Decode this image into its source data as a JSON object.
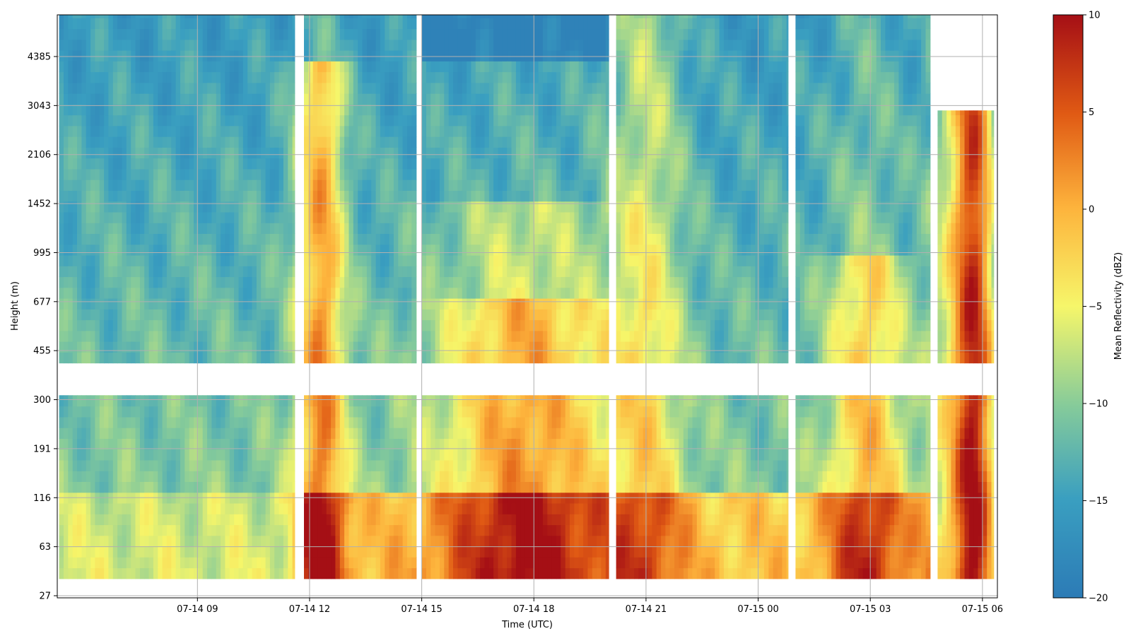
{
  "chart_data": {
    "type": "heatmap",
    "xlabel": "Time (UTC)",
    "ylabel": "Height (m)",
    "colorbar_label": "Mean Reflectivity (dBZ)",
    "x_range_hours": [
      5.25,
      30.4
    ],
    "x_ticks": [
      {
        "label": "07-14 09",
        "hour": 9
      },
      {
        "label": "07-14 12",
        "hour": 12
      },
      {
        "label": "07-14 15",
        "hour": 15
      },
      {
        "label": "07-14 18",
        "hour": 18
      },
      {
        "label": "07-14 21",
        "hour": 21
      },
      {
        "label": "07-15 00",
        "hour": 24
      },
      {
        "label": "07-15 03",
        "hour": 27
      },
      {
        "label": "07-15 06",
        "hour": 30
      }
    ],
    "y_ticks": [
      "27",
      "63",
      "116",
      "191",
      "300",
      "455",
      "677",
      "995",
      "1452",
      "2106",
      "3043",
      "4385"
    ],
    "colorbar": {
      "min": -20,
      "max": 10,
      "ticks": [
        "10",
        "5",
        "0",
        "−5",
        "−10",
        "−15",
        "−20"
      ]
    },
    "grid": true,
    "colormap": "RdYlBu_r",
    "time_segments": [
      {
        "start": 5.3,
        "end": 11.6,
        "top_level": 12.4
      },
      {
        "start": 11.85,
        "end": 14.85,
        "top_level": 13.3
      },
      {
        "start": 15.0,
        "end": 20.0,
        "top_level": 15.3
      },
      {
        "start": 20.2,
        "end": 24.8,
        "top_level": 14.7
      },
      {
        "start": 25.0,
        "end": 28.6,
        "top_level": 14.0
      },
      {
        "start": 28.8,
        "end": 30.3,
        "top_level": 9.9
      }
    ],
    "gap_levels": [
      4.23,
      4.55
    ],
    "bottom_level": 0.35
  }
}
